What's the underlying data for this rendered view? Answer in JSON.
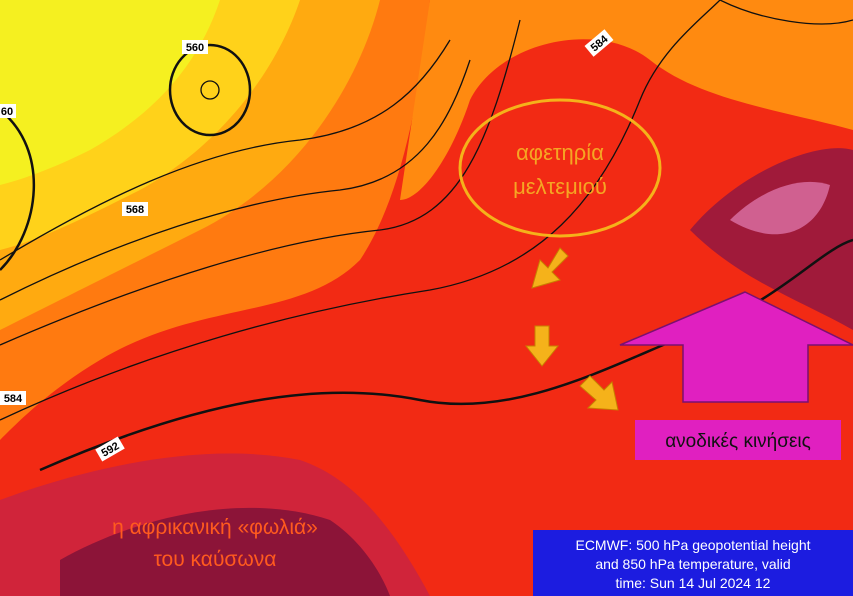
{
  "contour_labels": [
    "560",
    "584",
    "568",
    "592",
    "584",
    "60"
  ],
  "annotations": {
    "origin": [
      "αφετηρία",
      "μελτεμιού"
    ],
    "updraft": "ανοδικές κινήσεις",
    "heat_dome": [
      "η αφρικανική «φωλιά»",
      "του καύσωνα"
    ]
  },
  "caption": [
    "ECMWF: 500 hPa geopotential height",
    "and 850 hPa temperature, valid",
    "time: Sun 14 Jul 2024 12"
  ]
}
